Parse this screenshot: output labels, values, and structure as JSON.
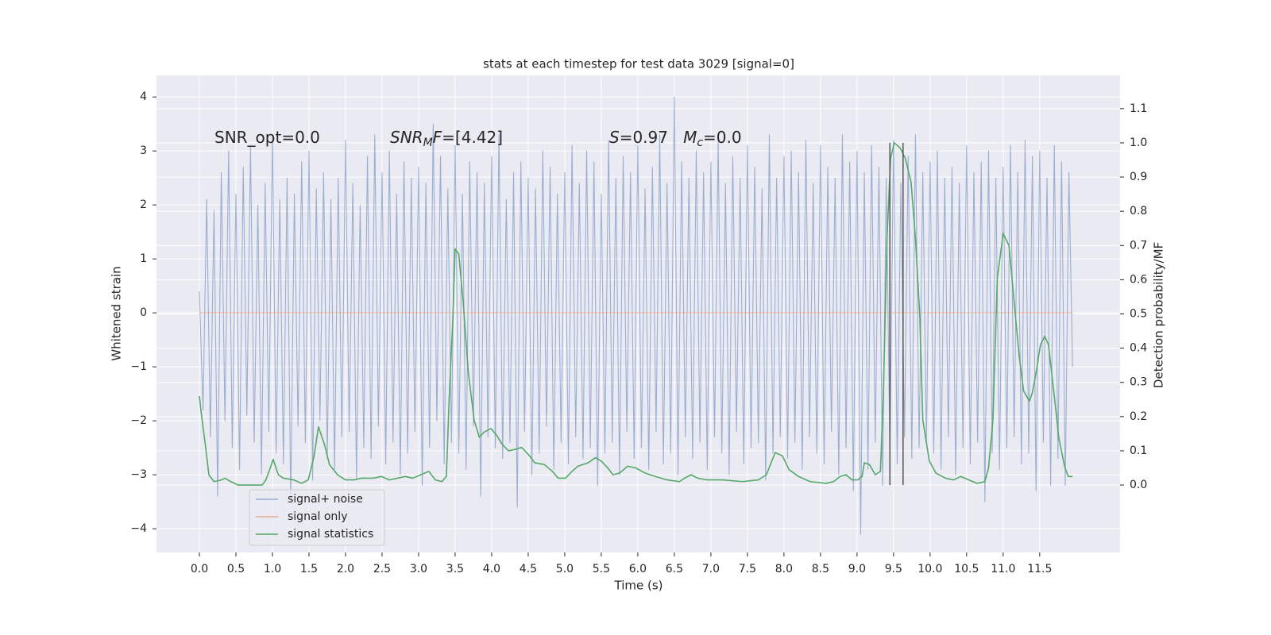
{
  "chart_data": {
    "type": "line",
    "title": "stats at each timestep for test data 3029 [signal=0]",
    "xlabel": "Time (s)",
    "ylabel": "Whitened strain",
    "y2label": "Detection probability/MF",
    "xlim": [
      -0.587,
      12.6
    ],
    "ylim": [
      -4.44,
      4.4
    ],
    "y2lim": [
      -0.197,
      1.197
    ],
    "xticks": [
      {
        "value": 0,
        "label": "0.0"
      },
      0.5,
      {
        "value": 1,
        "label": "1.0"
      },
      1.5,
      {
        "value": 2,
        "label": "2.0"
      },
      2.5,
      {
        "value": 3,
        "label": "3.0"
      },
      3.5,
      {
        "value": 4,
        "label": "4.0"
      },
      4.5,
      {
        "value": 5,
        "label": "5.0"
      },
      5.5,
      {
        "value": 6,
        "label": "6.0"
      },
      6.5,
      {
        "value": 7,
        "label": "7.0"
      },
      7.5,
      {
        "value": 8,
        "label": "8.0"
      },
      8.5,
      {
        "value": 9,
        "label": "9.0"
      },
      9.5,
      {
        "value": 10,
        "label": "10.0"
      },
      10.5,
      {
        "value": 11,
        "label": "11.0"
      },
      11.5
    ],
    "yticks": [
      {
        "value": -4,
        "label": "−4"
      },
      {
        "value": -3,
        "label": "−3"
      },
      {
        "value": -2,
        "label": "−2"
      },
      {
        "value": -1,
        "label": "−1"
      },
      0,
      1,
      2,
      3,
      4
    ],
    "y2ticks": [
      {
        "value": 0,
        "label": "0.0"
      },
      0.1,
      0.2,
      0.3,
      0.4,
      0.5,
      0.6,
      0.7,
      0.8,
      0.9,
      {
        "value": 1,
        "label": "1.0"
      },
      1.1
    ],
    "grid": true,
    "legend": "lower left",
    "annotations": [
      [
        "SNR_opt=0.0"
      ],
      [
        "SNR",
        "M",
        "F",
        "=[4.42]"
      ],
      [
        "S",
        "=0.97   ",
        "M",
        "c",
        "=0.0"
      ]
    ],
    "vlines": {
      "x": [
        9.45,
        9.63
      ],
      "ymin": 0,
      "ymax": 1,
      "axis": "y2",
      "color": "#555555"
    },
    "series": [
      {
        "name": "signal+ noise",
        "color": "#4c72b0",
        "opacity": 0.5,
        "x": [
          0,
          0.05,
          0.1,
          0.15,
          0.2,
          0.25,
          0.3,
          0.35,
          0.4,
          0.45,
          0.5,
          0.55,
          0.6,
          0.65,
          0.7,
          0.75,
          0.8,
          0.85,
          0.9,
          0.95,
          1,
          1.05,
          1.1,
          1.15,
          1.2,
          1.25,
          1.3,
          1.35,
          1.4,
          1.45,
          1.5,
          1.55,
          1.6,
          1.65,
          1.7,
          1.75,
          1.8,
          1.85,
          1.9,
          1.95,
          2,
          2.05,
          2.1,
          2.15,
          2.2,
          2.25,
          2.3,
          2.35,
          2.4,
          2.45,
          2.5,
          2.55,
          2.6,
          2.65,
          2.7,
          2.75,
          2.8,
          2.85,
          2.9,
          2.95,
          3,
          3.05,
          3.1,
          3.15,
          3.2,
          3.25,
          3.3,
          3.35,
          3.4,
          3.45,
          3.5,
          3.55,
          3.6,
          3.65,
          3.7,
          3.75,
          3.8,
          3.85,
          3.9,
          3.95,
          4,
          4.05,
          4.1,
          4.15,
          4.2,
          4.25,
          4.3,
          4.35,
          4.4,
          4.45,
          4.5,
          4.55,
          4.6,
          4.65,
          4.7,
          4.75,
          4.8,
          4.85,
          4.9,
          4.95,
          5,
          5.05,
          5.1,
          5.15,
          5.2,
          5.25,
          5.3,
          5.35,
          5.4,
          5.45,
          5.5,
          5.55,
          5.6,
          5.65,
          5.7,
          5.75,
          5.8,
          5.85,
          5.9,
          5.95,
          6,
          6.05,
          6.1,
          6.15,
          6.2,
          6.25,
          6.3,
          6.35,
          6.4,
          6.45,
          6.5,
          6.55,
          6.6,
          6.65,
          6.7,
          6.75,
          6.8,
          6.85,
          6.9,
          6.95,
          7,
          7.05,
          7.1,
          7.15,
          7.2,
          7.25,
          7.3,
          7.35,
          7.4,
          7.45,
          7.5,
          7.55,
          7.6,
          7.65,
          7.7,
          7.75,
          7.8,
          7.85,
          7.9,
          7.95,
          8,
          8.05,
          8.1,
          8.15,
          8.2,
          8.25,
          8.3,
          8.35,
          8.4,
          8.45,
          8.5,
          8.55,
          8.6,
          8.65,
          8.7,
          8.75,
          8.8,
          8.85,
          8.9,
          8.95,
          9,
          9.05,
          9.1,
          9.15,
          9.2,
          9.25,
          9.3,
          9.35,
          9.4,
          9.45,
          9.5,
          9.55,
          9.6,
          9.65,
          9.7,
          9.75,
          9.8,
          9.85,
          9.9,
          9.95,
          10,
          10.05,
          10.1,
          10.15,
          10.2,
          10.25,
          10.3,
          10.35,
          10.4,
          10.45,
          10.5,
          10.55,
          10.6,
          10.65,
          10.7,
          10.75,
          10.8,
          10.85,
          10.9,
          10.95,
          11,
          11.05,
          11.1,
          11.15,
          11.2,
          11.25,
          11.3,
          11.35,
          11.4,
          11.45,
          11.5,
          11.55,
          11.6,
          11.65,
          11.7,
          11.75,
          11.8,
          11.85,
          11.9,
          11.95
        ],
        "values": [
          0.4,
          -1.8,
          2.1,
          -2.3,
          1.9,
          -3.4,
          2.6,
          -2.0,
          3.0,
          -2.5,
          2.2,
          -2.9,
          2.7,
          -1.9,
          3.1,
          -2.4,
          2.0,
          -3.0,
          2.4,
          -2.2,
          3.3,
          -2.6,
          2.1,
          -2.8,
          2.5,
          -3.5,
          2.2,
          -2.1,
          2.8,
          -2.4,
          3.0,
          -3.1,
          2.3,
          -2.0,
          2.6,
          -2.7,
          2.1,
          -2.9,
          2.5,
          -2.3,
          3.2,
          -2.2,
          2.4,
          -3.1,
          2.0,
          -2.5,
          2.9,
          -2.7,
          3.3,
          -2.1,
          2.6,
          -2.8,
          3.0,
          -2.4,
          2.2,
          -3.0,
          2.8,
          -2.6,
          2.5,
          -2.2,
          2.7,
          -3.2,
          2.4,
          -2.5,
          3.5,
          -2.0,
          2.9,
          -2.8,
          2.3,
          -2.4,
          3.1,
          -2.6,
          2.2,
          -2.9,
          2.8,
          -2.1,
          2.6,
          -3.4,
          2.4,
          -2.3,
          2.9,
          -2.5,
          3.3,
          -2.7,
          2.1,
          -2.4,
          2.6,
          -3.6,
          2.8,
          -2.2,
          2.5,
          -3.0,
          2.3,
          -2.6,
          3.0,
          -2.1,
          2.7,
          -2.9,
          2.2,
          -2.4,
          2.6,
          -2.8,
          3.1,
          -2.3,
          2.4,
          -2.7,
          3.0,
          -2.5,
          2.8,
          -3.2,
          2.2,
          -2.6,
          3.2,
          -2.4,
          2.5,
          -3.0,
          2.9,
          -2.2,
          2.6,
          -2.7,
          3.1,
          -2.5,
          2.3,
          -2.9,
          2.7,
          -2.2,
          3.3,
          -2.8,
          2.4,
          -2.6,
          4.0,
          -3.0,
          2.8,
          -2.3,
          2.5,
          -2.7,
          3.0,
          -2.4,
          2.6,
          -2.9,
          2.8,
          -2.3,
          3.2,
          -2.6,
          2.4,
          -3.0,
          2.9,
          -2.2,
          2.5,
          -2.8,
          3.1,
          -2.5,
          2.7,
          -2.4,
          2.3,
          -3.1,
          3.3,
          -2.6,
          2.5,
          -2.3,
          2.9,
          -2.7,
          3.0,
          -2.4,
          2.6,
          -2.9,
          3.2,
          -2.3,
          2.4,
          -2.6,
          3.1,
          -2.8,
          2.7,
          -2.2,
          2.5,
          -3.0,
          3.3,
          -2.5,
          2.8,
          -3.3,
          3.0,
          -4.1,
          2.6,
          -2.9,
          3.1,
          -2.4,
          2.7,
          -3.2,
          2.5,
          -2.6,
          3.2,
          -2.8,
          2.4,
          -2.3,
          2.9,
          -2.7,
          3.3,
          -2.5,
          2.6,
          -2.4,
          2.8,
          -2.6,
          3.0,
          -2.9,
          2.5,
          -2.3,
          2.7,
          -3.0,
          2.4,
          -2.5,
          3.1,
          -2.8,
          2.6,
          -2.4,
          2.8,
          -3.5,
          3.0,
          -2.6,
          2.5,
          -2.9,
          2.7,
          -2.5,
          3.1,
          -2.3,
          2.6,
          -2.8,
          3.2,
          -2.6,
          2.9,
          -3.3,
          3.0,
          -2.4,
          2.5,
          -3.2,
          3.1,
          -2.7,
          2.8,
          -3.2,
          2.6,
          -1.0
        ]
      },
      {
        "name": "signal only",
        "color": "#dd8452",
        "opacity": 0.6,
        "x": [
          0,
          11.95
        ],
        "values": [
          0,
          0
        ]
      },
      {
        "name": "signal statistics",
        "color": "#55a868",
        "opacity": 1,
        "axis": "y2",
        "x": [
          0,
          0.02,
          0.08,
          0.13,
          0.2,
          0.3,
          0.35,
          0.43,
          0.53,
          0.75,
          0.86,
          0.91,
          0.97,
          1.01,
          1.08,
          1.15,
          1.29,
          1.4,
          1.49,
          1.57,
          1.63,
          1.71,
          1.78,
          1.89,
          2.0,
          2.11,
          2.22,
          2.38,
          2.49,
          2.6,
          2.71,
          2.82,
          2.92,
          3.03,
          3.14,
          3.23,
          3.32,
          3.38,
          3.42,
          3.47,
          3.5,
          3.55,
          3.61,
          3.68,
          3.76,
          3.83,
          3.9,
          3.99,
          4.07,
          4.14,
          4.23,
          4.34,
          4.41,
          4.5,
          4.59,
          4.72,
          4.83,
          4.91,
          5.01,
          5.1,
          5.18,
          5.32,
          5.42,
          5.5,
          5.59,
          5.66,
          5.75,
          5.86,
          5.97,
          6.1,
          6.24,
          6.4,
          6.57,
          6.64,
          6.73,
          6.82,
          6.95,
          7.16,
          7.43,
          7.65,
          7.76,
          7.88,
          7.98,
          8.07,
          8.2,
          8.36,
          8.58,
          8.68,
          8.77,
          8.85,
          8.93,
          9.01,
          9.07,
          9.1,
          9.17,
          9.25,
          9.32,
          9.36,
          9.41,
          9.46,
          9.51,
          9.59,
          9.66,
          9.74,
          9.8,
          9.86,
          9.9,
          9.99,
          10.08,
          10.21,
          10.32,
          10.42,
          10.53,
          10.64,
          10.75,
          10.8,
          10.86,
          10.92,
          11.0,
          11.08,
          11.15,
          11.22,
          11.28,
          11.36,
          11.4,
          11.46,
          11.51,
          11.57,
          11.62,
          11.7,
          11.76,
          11.84,
          11.89,
          11.95
        ],
        "values": [
          0.26,
          0.22,
          0.12,
          0.03,
          0.01,
          0.015,
          0.02,
          0.01,
          0.0,
          0.0,
          0.0,
          0.015,
          0.05,
          0.075,
          0.03,
          0.02,
          0.015,
          0.005,
          0.015,
          0.085,
          0.17,
          0.12,
          0.06,
          0.03,
          0.015,
          0.015,
          0.02,
          0.02,
          0.025,
          0.015,
          0.02,
          0.025,
          0.02,
          0.03,
          0.04,
          0.015,
          0.01,
          0.025,
          0.26,
          0.49,
          0.69,
          0.675,
          0.535,
          0.33,
          0.19,
          0.14,
          0.155,
          0.165,
          0.145,
          0.12,
          0.1,
          0.105,
          0.11,
          0.09,
          0.065,
          0.06,
          0.04,
          0.02,
          0.02,
          0.04,
          0.055,
          0.065,
          0.08,
          0.07,
          0.05,
          0.03,
          0.035,
          0.055,
          0.05,
          0.035,
          0.025,
          0.015,
          0.01,
          0.02,
          0.03,
          0.02,
          0.015,
          0.015,
          0.01,
          0.015,
          0.03,
          0.095,
          0.085,
          0.045,
          0.025,
          0.01,
          0.005,
          0.01,
          0.025,
          0.03,
          0.015,
          0.015,
          0.025,
          0.065,
          0.06,
          0.03,
          0.04,
          0.26,
          0.72,
          0.955,
          1.0,
          0.985,
          0.955,
          0.885,
          0.72,
          0.49,
          0.19,
          0.07,
          0.035,
          0.02,
          0.015,
          0.025,
          0.015,
          0.005,
          0.01,
          0.05,
          0.19,
          0.605,
          0.735,
          0.7,
          0.535,
          0.375,
          0.275,
          0.245,
          0.27,
          0.34,
          0.41,
          0.435,
          0.41,
          0.26,
          0.14,
          0.055,
          0.025,
          0.025
        ]
      }
    ]
  }
}
